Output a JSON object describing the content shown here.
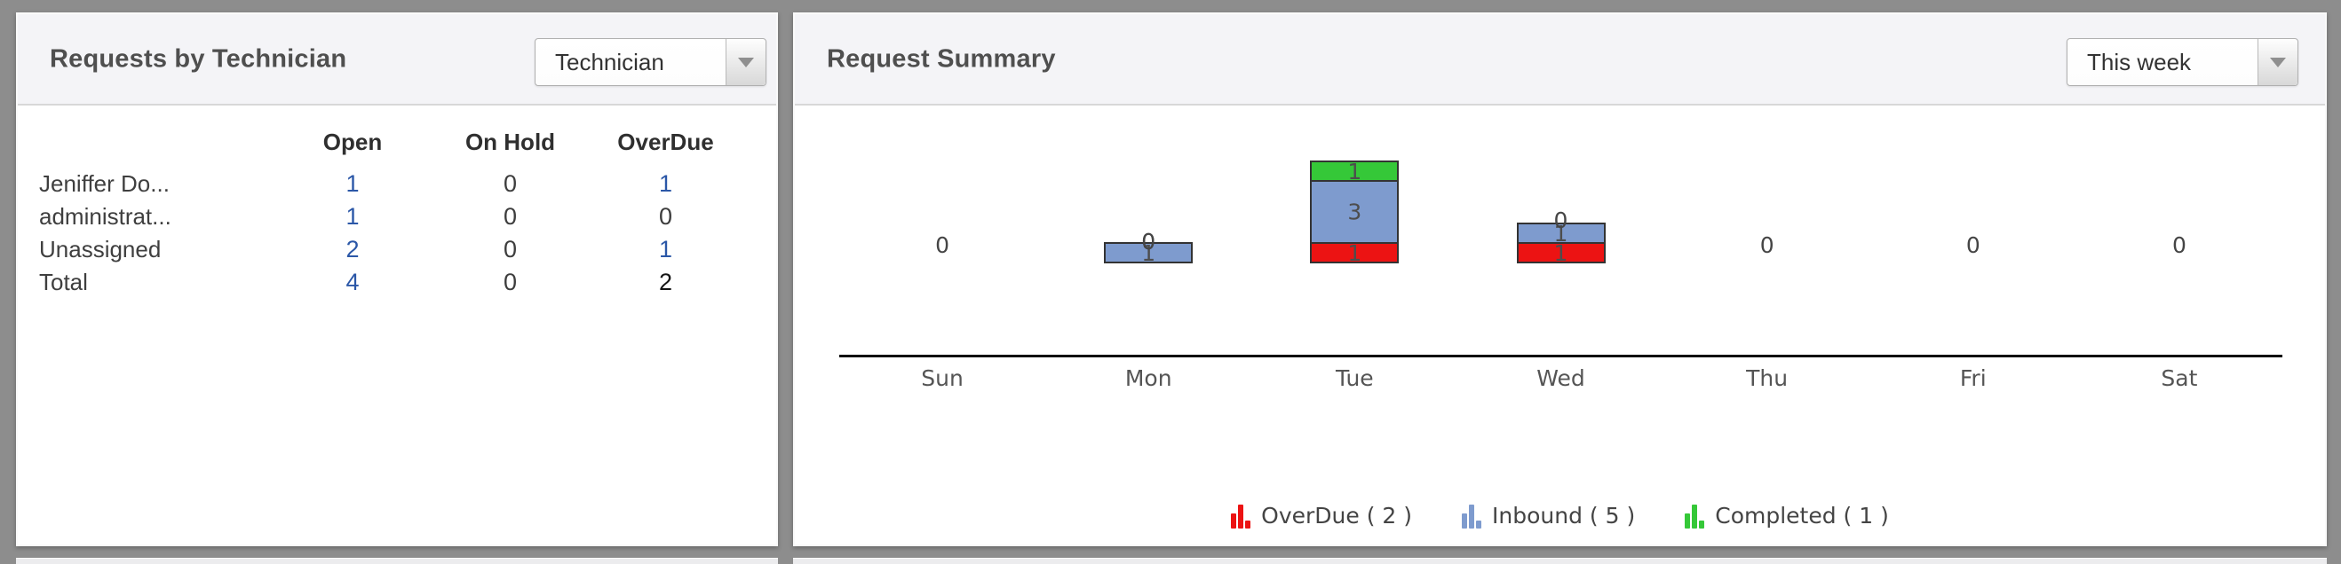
{
  "colors": {
    "page_bg": "#8d8d8d",
    "panel_bg": "#ffffff",
    "header_bg": "#f4f4f7",
    "link_blue": "#2b57a7",
    "bar_border": "#333333",
    "overdue_red": "#ec1313",
    "inbound_blue": "#7e9bce",
    "completed_green": "#35c838"
  },
  "left_panel": {
    "title": "Requests by Technician",
    "dropdown_value": "Technician",
    "table": {
      "columns": [
        "",
        "Open",
        "On Hold",
        "OverDue"
      ],
      "rows": [
        {
          "label": "Jeniffer Do...",
          "cells": [
            {
              "text": "1",
              "style": "link"
            },
            {
              "text": "0",
              "style": "plain"
            },
            {
              "text": "1",
              "style": "link"
            }
          ]
        },
        {
          "label": "administrat...",
          "cells": [
            {
              "text": "1",
              "style": "link"
            },
            {
              "text": "0",
              "style": "plain"
            },
            {
              "text": "0",
              "style": "plain"
            }
          ]
        },
        {
          "label": "Unassigned",
          "cells": [
            {
              "text": "2",
              "style": "link"
            },
            {
              "text": "0",
              "style": "plain"
            },
            {
              "text": "1",
              "style": "link"
            }
          ]
        },
        {
          "label": "Total",
          "cells": [
            {
              "text": "4",
              "style": "link"
            },
            {
              "text": "0",
              "style": "plain"
            },
            {
              "text": "2",
              "style": "total"
            }
          ]
        }
      ]
    }
  },
  "right_panel": {
    "title": "Request Summary",
    "dropdown_value": "This week",
    "chart_data": {
      "type": "bar",
      "stacked": true,
      "grid": false,
      "legend_position": "bottom-center",
      "categories": [
        "Sun",
        "Mon",
        "Tue",
        "Wed",
        "Thu",
        "Fri",
        "Sat"
      ],
      "series": [
        {
          "name": "OverDue",
          "color": "#ec1313",
          "values": [
            0,
            0,
            1,
            1,
            0,
            0,
            0
          ],
          "total": 2
        },
        {
          "name": "Inbound",
          "color": "#7e9bce",
          "values": [
            0,
            1,
            3,
            1,
            0,
            0,
            0
          ],
          "total": 5
        },
        {
          "name": "Completed",
          "color": "#35c838",
          "values": [
            0,
            0,
            1,
            0,
            0,
            0,
            0
          ],
          "total": 1
        }
      ],
      "legend_labels": [
        "OverDue ( 2 )",
        "Inbound ( 5 )",
        "Completed ( 1 )"
      ],
      "ylim": [
        0,
        5
      ]
    }
  }
}
